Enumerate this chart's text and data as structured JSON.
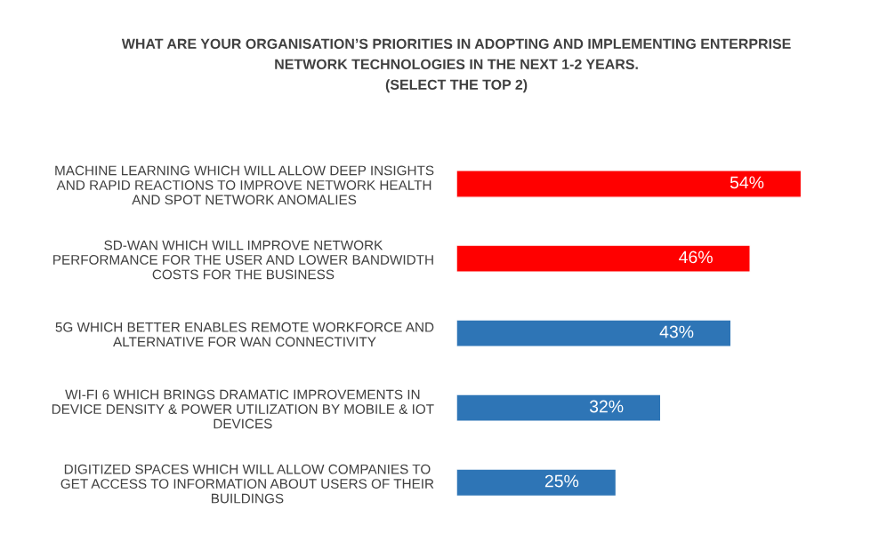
{
  "chart_data": {
    "type": "bar",
    "orientation": "horizontal",
    "title": "WHAT ARE YOUR ORGANISATION’S PRIORITIES IN ADOPTING AND IMPLEMENTING ENTERPRISE\nNETWORK TECHNOLOGIES IN THE NEXT 1-2 YEARS.\n(SELECT THE TOP 2)",
    "categories": [
      "MACHINE LEARNING WHICH WILL ALLOW DEEP INSIGHTS\nAND RAPID REACTIONS TO IMPROVE NETWORK HEALTH\nAND SPOT NETWORK ANOMALIES",
      "SD-WAN WHICH WILL IMPROVE NETWORK\nPERFORMANCE FOR THE USER AND LOWER BANDWIDTH\nCOSTS FOR THE BUSINESS",
      "5G WHICH BETTER ENABLES REMOTE WORKFORCE AND\nALTERNATIVE FOR WAN CONNECTIVITY",
      "WI-FI 6 WHICH BRINGS DRAMATIC IMPROVEMENTS IN\nDEVICE DENSITY & POWER UTILIZATION BY MOBILE & IOT\nDEVICES",
      "DIGITIZED SPACES WHICH WILL ALLOW COMPANIES TO\nGET ACCESS TO INFORMATION ABOUT USERS OF THEIR\nBUILDINGS"
    ],
    "values": [
      54,
      46,
      43,
      32,
      25
    ],
    "value_labels": [
      "54%",
      "46%",
      "43%",
      "32%",
      "25%"
    ],
    "colors": [
      "#ff0000",
      "#ff0000",
      "#2e75b6",
      "#2e75b6",
      "#2e75b6"
    ],
    "tick_labels": "y",
    "grid": false,
    "legend": false
  }
}
